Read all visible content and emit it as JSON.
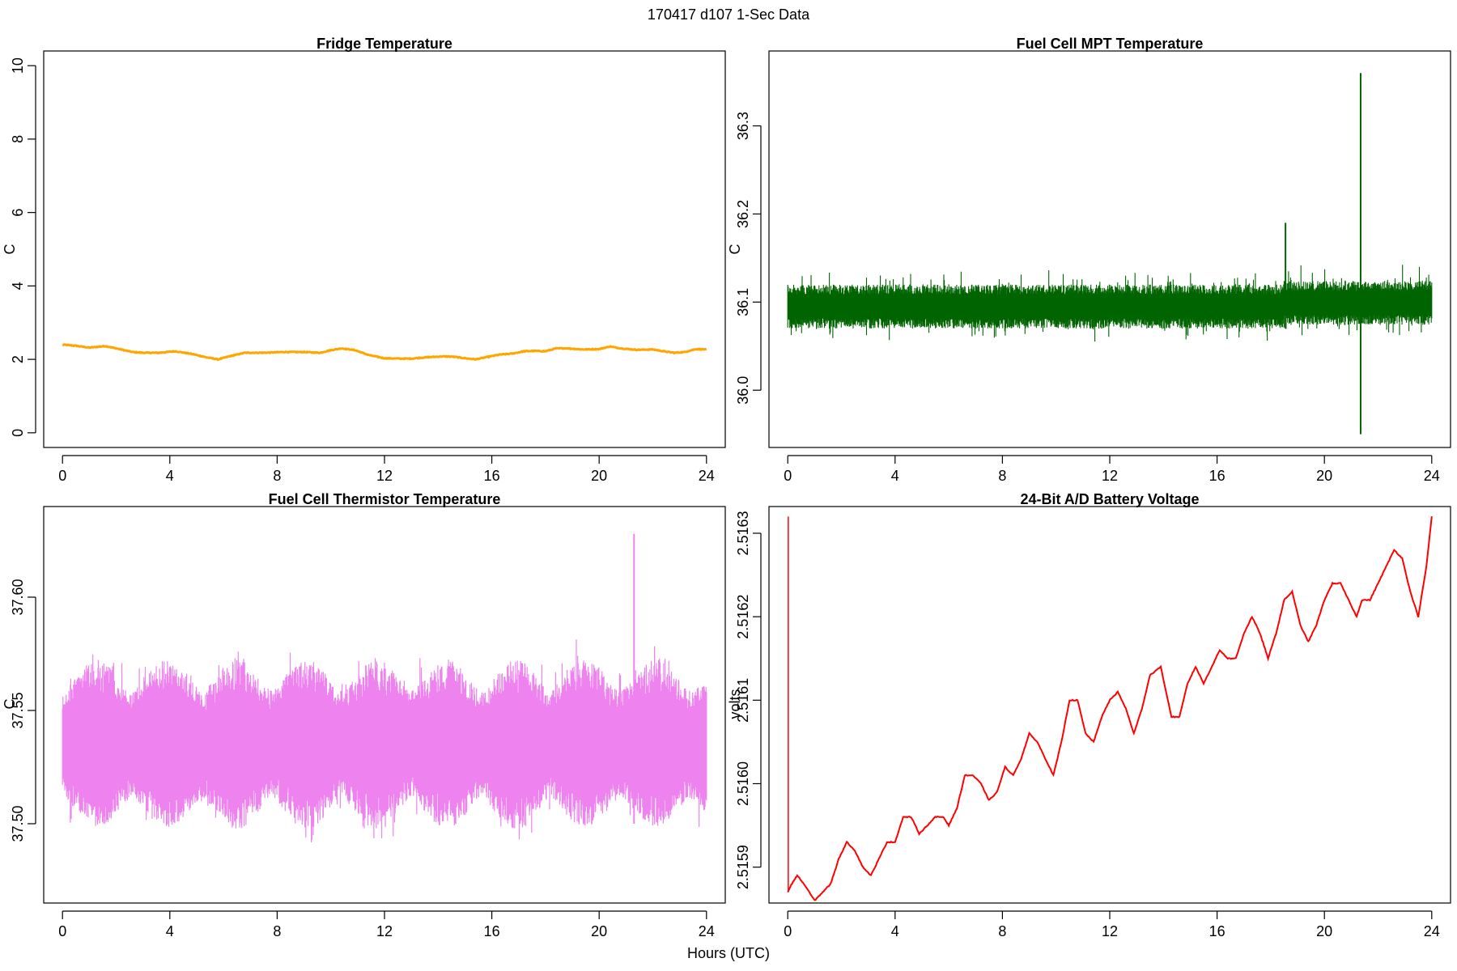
{
  "figure": {
    "title": "170417   d107   1-Sec Data",
    "xlabel": "Hours (UTC)"
  },
  "chart_data": [
    {
      "type": "line",
      "title": "Fridge Temperature",
      "ylabel": "C",
      "color": "#ffa500",
      "xlim": [
        -0.7,
        24.7
      ],
      "ylim": [
        -0.4,
        10.4
      ],
      "xticks": [
        0,
        4,
        8,
        12,
        16,
        20,
        24
      ],
      "yticks": [
        0,
        2,
        4,
        6,
        8,
        10
      ],
      "ytick_labels": [
        "0",
        "2",
        "4",
        "6",
        "8",
        "10"
      ],
      "noise": 0.02,
      "x": [
        0,
        0.5,
        1,
        1.6,
        2,
        2.6,
        3,
        3.6,
        4.2,
        4.8,
        5.4,
        5.8,
        6.2,
        6.8,
        7.5,
        8.2,
        9,
        9.6,
        10,
        10.4,
        10.9,
        11.4,
        12,
        12.6,
        13,
        13.6,
        14.2,
        14.6,
        15,
        15.4,
        15.8,
        16.3,
        16.8,
        17.2,
        17.6,
        18,
        18.4,
        18.8,
        19.4,
        20,
        20.4,
        20.8,
        21.4,
        22,
        22.4,
        22.8,
        23.2,
        23.6,
        24
      ],
      "y": [
        2.4,
        2.37,
        2.32,
        2.36,
        2.3,
        2.2,
        2.18,
        2.18,
        2.22,
        2.15,
        2.05,
        2.0,
        2.08,
        2.18,
        2.18,
        2.2,
        2.2,
        2.18,
        2.25,
        2.3,
        2.25,
        2.12,
        2.03,
        2.02,
        2.02,
        2.06,
        2.08,
        2.07,
        2.03,
        2.0,
        2.06,
        2.13,
        2.16,
        2.22,
        2.23,
        2.22,
        2.3,
        2.3,
        2.27,
        2.28,
        2.35,
        2.3,
        2.26,
        2.27,
        2.22,
        2.18,
        2.2,
        2.28,
        2.27
      ]
    },
    {
      "type": "line",
      "title": "Fuel Cell MPT Temperature",
      "ylabel": "C",
      "color": "#006400",
      "xlim": [
        -0.7,
        24.7
      ],
      "ylim": [
        35.935,
        36.385
      ],
      "xticks": [
        0,
        4,
        8,
        12,
        16,
        20,
        24
      ],
      "yticks": [
        36.0,
        36.1,
        36.2,
        36.3
      ],
      "ytick_labels": [
        "36.0",
        "36.1",
        "36.2",
        "36.3"
      ],
      "baseline": 36.095,
      "band": 0.025,
      "spikes": [
        {
          "x": 18.55,
          "min": 36.07,
          "max": 36.19
        },
        {
          "x": 21.35,
          "min": 35.95,
          "max": 36.36
        }
      ]
    },
    {
      "type": "line",
      "title": "Fuel Cell Thermistor Temperature",
      "ylabel": "C",
      "color": "#ee82ee",
      "xlim": [
        -0.7,
        24.7
      ],
      "ylim": [
        37.465,
        37.64
      ],
      "xticks": [
        0,
        4,
        8,
        12,
        16,
        20,
        24
      ],
      "yticks": [
        37.5,
        37.55,
        37.6
      ],
      "ytick_labels": [
        "37.50",
        "37.55",
        "37.60"
      ],
      "baseline": 37.535,
      "band": 0.025,
      "cycle_hours": 2.6,
      "spikes": [
        {
          "x": 21.3,
          "min": 37.5,
          "max": 37.628
        }
      ]
    },
    {
      "type": "line",
      "title": "24-Bit A/D Battery Voltage",
      "ylabel": "volts",
      "color": "#ff0000",
      "xlim": [
        -0.7,
        24.7
      ],
      "ylim": [
        2.515857,
        2.516332
      ],
      "xticks": [
        0,
        4,
        8,
        12,
        16,
        20,
        24
      ],
      "yticks": [
        2.5159,
        2.516,
        2.5161,
        2.5162,
        2.5163
      ],
      "ytick_labels": [
        "2.5159",
        "2.5160",
        "2.5161",
        "2.5162",
        "2.5163"
      ],
      "spike": {
        "x": 0.02,
        "max": 2.51632
      },
      "x": [
        0,
        0.15,
        0.35,
        0.6,
        1.0,
        1.3,
        1.6,
        1.9,
        2.2,
        2.5,
        2.8,
        3.1,
        3.4,
        3.7,
        4.0,
        4.3,
        4.6,
        4.9,
        5.2,
        5.5,
        5.8,
        6.0,
        6.3,
        6.6,
        6.9,
        7.2,
        7.5,
        7.8,
        8.1,
        8.4,
        8.7,
        9.0,
        9.3,
        9.6,
        9.9,
        10.2,
        10.5,
        10.8,
        11.1,
        11.4,
        11.7,
        12.0,
        12.3,
        12.6,
        12.9,
        13.2,
        13.5,
        13.9,
        14.3,
        14.6,
        14.9,
        15.2,
        15.5,
        15.8,
        16.1,
        16.4,
        16.7,
        17.0,
        17.3,
        17.6,
        17.9,
        18.2,
        18.5,
        18.8,
        19.1,
        19.4,
        19.7,
        20.0,
        20.3,
        20.6,
        20.9,
        21.2,
        21.4,
        21.7,
        22.0,
        22.3,
        22.6,
        22.9,
        23.2,
        23.5,
        23.8,
        24.0
      ],
      "y": [
        2.51587,
        2.51588,
        2.51589,
        2.51588,
        2.51586,
        2.51587,
        2.51588,
        2.51591,
        2.51593,
        2.51592,
        2.5159,
        2.51589,
        2.51591,
        2.51593,
        2.51593,
        2.51596,
        2.51596,
        2.51594,
        2.51595,
        2.51596,
        2.51596,
        2.51595,
        2.51597,
        2.51601,
        2.51601,
        2.516,
        2.51598,
        2.51599,
        2.51602,
        2.51601,
        2.51603,
        2.51606,
        2.51605,
        2.51603,
        2.51601,
        2.51605,
        2.5161,
        2.5161,
        2.51606,
        2.51605,
        2.51608,
        2.5161,
        2.51611,
        2.51609,
        2.51606,
        2.51609,
        2.51613,
        2.51614,
        2.51608,
        2.51608,
        2.51612,
        2.51614,
        2.51612,
        2.51614,
        2.51616,
        2.51615,
        2.51615,
        2.51618,
        2.5162,
        2.51618,
        2.51615,
        2.51618,
        2.51622,
        2.51623,
        2.51619,
        2.51617,
        2.51619,
        2.51622,
        2.51624,
        2.51624,
        2.51622,
        2.5162,
        2.51622,
        2.51622,
        2.51624,
        2.51626,
        2.51628,
        2.51627,
        2.51623,
        2.5162,
        2.51626,
        2.51632
      ]
    }
  ]
}
